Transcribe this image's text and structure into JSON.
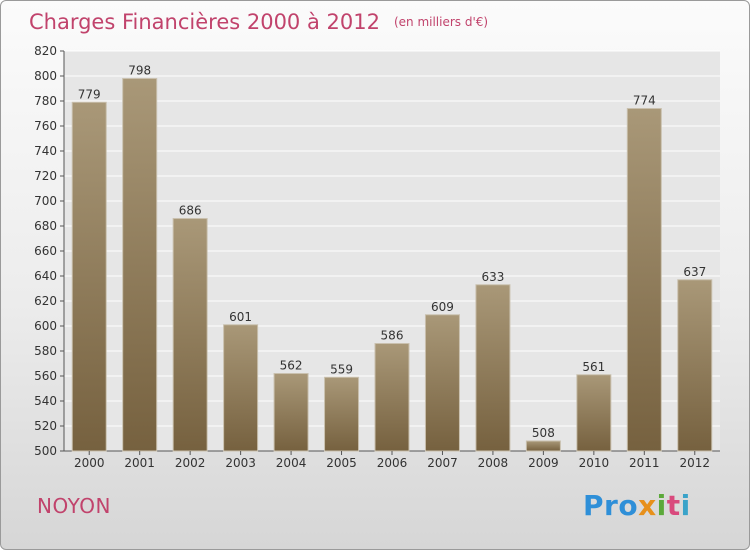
{
  "header": {
    "title": "Charges Financières 2000 à 2012",
    "unit": "(en milliers d'€)"
  },
  "footer": {
    "place": "NOYON",
    "logo": [
      "Pro",
      "x",
      "i",
      "t",
      "i"
    ]
  },
  "colors": {
    "title": "#c1436c",
    "bar_light": "#a99878",
    "bar_dark": "#76613f",
    "plot_bg": "#e6e6e6",
    "grid": "#ffffff"
  },
  "chart_data": {
    "type": "bar",
    "categories": [
      "2000",
      "2001",
      "2002",
      "2003",
      "2004",
      "2005",
      "2006",
      "2007",
      "2008",
      "2009",
      "2010",
      "2011",
      "2012"
    ],
    "values": [
      779,
      798,
      686,
      601,
      562,
      559,
      586,
      609,
      633,
      508,
      561,
      774,
      637
    ],
    "ylim": [
      500,
      820
    ],
    "yticks": [
      500,
      520,
      540,
      560,
      580,
      600,
      620,
      640,
      660,
      680,
      700,
      720,
      740,
      760,
      780,
      800,
      820
    ],
    "grid": true,
    "data_labels": true
  }
}
